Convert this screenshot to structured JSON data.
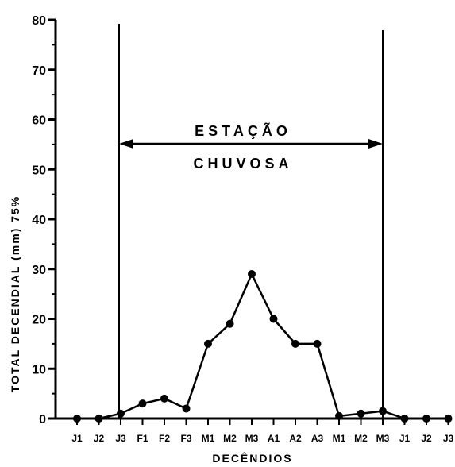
{
  "chart_data": {
    "type": "line",
    "title": "",
    "xlabel": "DECÊNDIOS",
    "ylabel": "TOTAL DECENDIAL (mm) 75%",
    "ylim": [
      0,
      80
    ],
    "yticks": [
      "0",
      "10",
      "20",
      "30",
      "40",
      "50",
      "60",
      "70",
      "80"
    ],
    "categories": [
      "J1",
      "J2",
      "J3",
      "F1",
      "F2",
      "F3",
      "M1",
      "M2",
      "M3",
      "A1",
      "A2",
      "A3",
      "M1",
      "M2",
      "M3",
      "J1",
      "J2",
      "J3"
    ],
    "series": [
      {
        "values": [
          0,
          0,
          1,
          3,
          4,
          2,
          15,
          19,
          29,
          20,
          15,
          15,
          0.5,
          1,
          1.5,
          0,
          0,
          0
        ]
      }
    ],
    "grid": false,
    "annotations": {
      "line1": "ESTAÇÃO",
      "line2": "CHUVOSA",
      "start_category_index": 2,
      "end_category_index": 14
    }
  }
}
